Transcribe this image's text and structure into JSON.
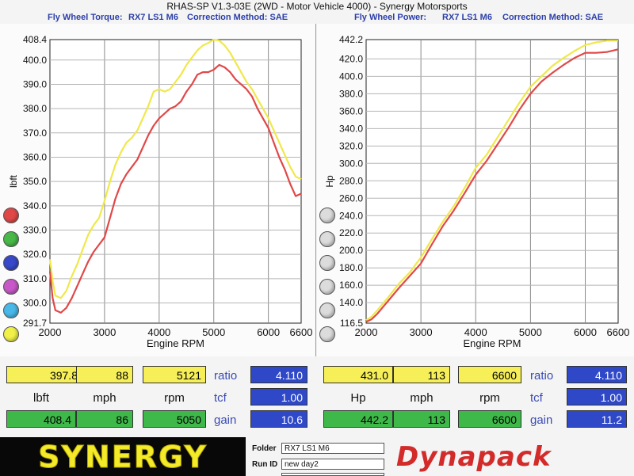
{
  "title": "RHAS-SP V1.3-03E  (2WD - Motor Vehicle 4000) - Synergy Motorsports",
  "left_header": {
    "label": "Fly Wheel Torque:",
    "vehicle": "RX7 LS1 M6",
    "correction": "Correction Method: SAE"
  },
  "right_header": {
    "label": "Fly Wheel Power:",
    "vehicle": "RX7 LS1 M6",
    "correction": "Correction Method: SAE"
  },
  "swatches": [
    "#e04848",
    "#48b848",
    "#3848c8",
    "#c858c8",
    "#48b8e8",
    "#f0f048"
  ],
  "chart_data": [
    {
      "type": "line",
      "xlabel": "Engine RPM",
      "ylabel": "lbft",
      "xlim": [
        2000,
        6600
      ],
      "ylim": [
        291.7,
        408.4
      ],
      "xticks": [
        "2000",
        "3000",
        "4000",
        "5000",
        "6000",
        "6600"
      ],
      "yticks": [
        "291.7",
        "300.0",
        "310.0",
        "320.0",
        "330.0",
        "340.0",
        "350.0",
        "360.0",
        "370.0",
        "380.0",
        "390.0",
        "400.0",
        "408.4"
      ],
      "grid": true,
      "series": [
        {
          "color": "#f0e84a",
          "x": [
            2000,
            2050,
            2100,
            2200,
            2300,
            2400,
            2500,
            2600,
            2700,
            2800,
            2900,
            3000,
            3100,
            3200,
            3300,
            3400,
            3500,
            3600,
            3700,
            3800,
            3900,
            4000,
            4100,
            4200,
            4300,
            4400,
            4500,
            4600,
            4700,
            4800,
            4900,
            5000,
            5100,
            5200,
            5300,
            5400,
            5500,
            5600,
            5700,
            5800,
            5900,
            6000,
            6100,
            6200,
            6300,
            6400,
            6500,
            6600
          ],
          "y": [
            318,
            309,
            303,
            302,
            305,
            311,
            316,
            322,
            328,
            332,
            335,
            342,
            350,
            357,
            362,
            366,
            368,
            371,
            376,
            381,
            387,
            388,
            387,
            388,
            391,
            394,
            398,
            401,
            404,
            406,
            407,
            408.4,
            408,
            406,
            403,
            399,
            395,
            391,
            388,
            384,
            380,
            376,
            371,
            366,
            361,
            356,
            352,
            351
          ]
        },
        {
          "color": "#e04848",
          "x": [
            2000,
            2050,
            2100,
            2200,
            2300,
            2400,
            2500,
            2600,
            2700,
            2800,
            2900,
            3000,
            3100,
            3200,
            3300,
            3400,
            3500,
            3600,
            3700,
            3800,
            3900,
            4000,
            4100,
            4200,
            4300,
            4400,
            4500,
            4600,
            4700,
            4800,
            4900,
            5000,
            5100,
            5200,
            5300,
            5400,
            5500,
            5600,
            5700,
            5800,
            5900,
            6000,
            6100,
            6200,
            6300,
            6400,
            6500,
            6600
          ],
          "y": [
            313,
            302,
            297,
            296,
            298,
            302,
            307,
            312,
            317,
            321,
            324,
            327,
            335,
            343,
            349,
            353,
            356,
            359,
            364,
            369,
            373,
            376,
            378,
            380,
            381,
            383,
            387,
            390,
            394,
            395,
            395,
            396,
            398,
            397,
            395,
            392,
            390,
            388,
            385,
            380,
            376,
            372,
            366,
            360,
            355,
            349,
            344,
            345
          ]
        }
      ]
    },
    {
      "type": "line",
      "xlabel": "Engine RPM",
      "ylabel": "Hp",
      "xlim": [
        2000,
        6600
      ],
      "ylim": [
        116.5,
        442.2
      ],
      "xticks": [
        "2000",
        "3000",
        "4000",
        "5000",
        "6000",
        "6600"
      ],
      "yticks": [
        "116.5",
        "140.0",
        "160.0",
        "180.0",
        "200.0",
        "220.0",
        "240.0",
        "260.0",
        "280.0",
        "300.0",
        "320.0",
        "340.0",
        "360.0",
        "380.0",
        "400.0",
        "420.0",
        "442.2"
      ],
      "grid": true,
      "series": [
        {
          "color": "#f0e84a",
          "x": [
            2000,
            2100,
            2200,
            2400,
            2600,
            2800,
            3000,
            3200,
            3400,
            3600,
            3800,
            4000,
            4200,
            4400,
            4600,
            4800,
            5000,
            5200,
            5400,
            5600,
            5800,
            6000,
            6200,
            6400,
            6600
          ],
          "y": [
            120,
            124,
            131,
            146,
            162,
            175,
            192,
            213,
            233,
            251,
            272,
            295,
            310,
            330,
            350,
            370,
            388,
            400,
            412,
            421,
            429,
            436,
            439,
            441,
            441
          ]
        },
        {
          "color": "#e04848",
          "x": [
            2000,
            2100,
            2200,
            2400,
            2600,
            2800,
            3000,
            3200,
            3400,
            3600,
            3800,
            4000,
            4200,
            4400,
            4600,
            4800,
            5000,
            5200,
            5400,
            5600,
            5800,
            6000,
            6200,
            6400,
            6600
          ],
          "y": [
            118,
            121,
            127,
            142,
            157,
            171,
            185,
            207,
            228,
            246,
            266,
            287,
            303,
            322,
            341,
            362,
            380,
            394,
            404,
            413,
            421,
            427,
            427,
            428,
            431
          ]
        }
      ]
    }
  ],
  "left_readout": {
    "top": [
      "397.8",
      "88",
      "5121"
    ],
    "units": [
      "lbft",
      "mph",
      "rpm"
    ],
    "bottom": [
      "408.4",
      "86",
      "5050"
    ],
    "ratio_label": "ratio",
    "tcf_label": "tcf",
    "gain_label": "gain",
    "ratio": "4.110",
    "tcf": "1.00",
    "gain": "10.6"
  },
  "right_readout": {
    "top": [
      "431.0",
      "113",
      "6600"
    ],
    "units": [
      "Hp",
      "mph",
      "rpm"
    ],
    "bottom": [
      "442.2",
      "113",
      "6600"
    ],
    "ratio_label": "ratio",
    "tcf_label": "tcf",
    "gain_label": "gain",
    "ratio": "4.110",
    "tcf": "1.00",
    "gain": "11.2"
  },
  "footer": {
    "synergy_logo": "SYNERGY",
    "folder_label": "Folder",
    "folder": "RX7 LS1 M6",
    "runid_label": "Run ID",
    "runid": "new day2",
    "dynapack_logo": "Dynapack"
  }
}
